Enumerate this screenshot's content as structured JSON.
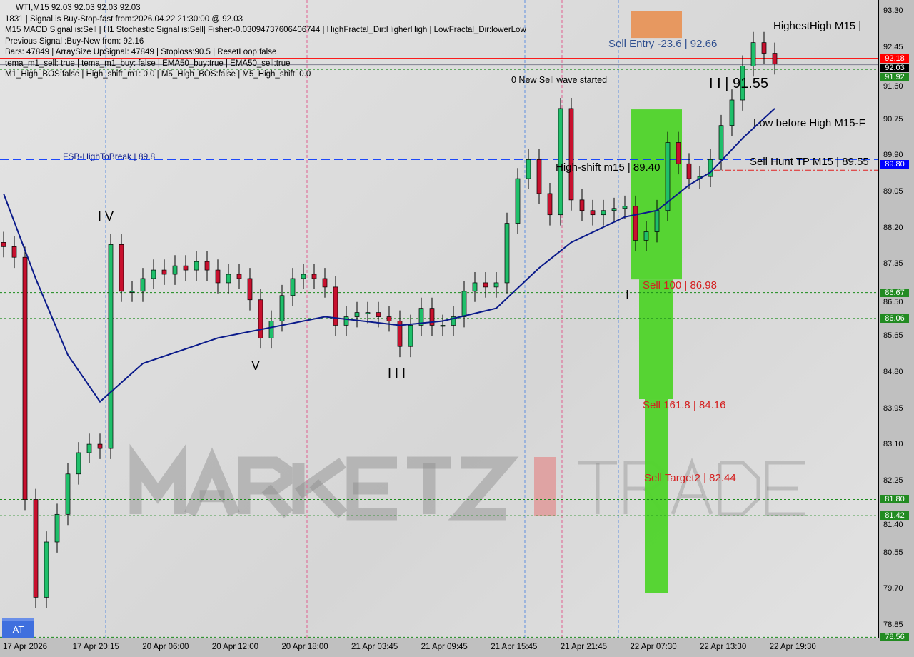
{
  "header": {
    "lines": [
      "WTI,M15  92.03 92.03 92.03 92.03",
      "1831 | Signal is Buy-Stop-fast from:2026.04.22 21:30:00 @ 92.03",
      "M15 MACD Signal is:Sell | H1 Stochastic Signal is:Sell| Fisher:-0.03094737606406744 | HighFractal_Dir:HigherHigh | LowFractal_Dir:lowerLow",
      "Previous Signal :Buy-New from: 92.16",
      "Bars: 47849 | ArraySize UpSignal: 47849 | Stoploss:90.5 | ResetLoop:false",
      "tema_m1_sell: true | tema_m1_buy: false | EMA50_buy:true | EMA50_sell:true",
      "M1_High_BOS:false | High_shift_m1: 0.0 | M5_High_BOS:false | M5_High_shift: 0.0"
    ]
  },
  "annotations": {
    "sell_entry": "Sell Entry -23.6 | 92.66",
    "new_wave": "0 New Sell wave started",
    "fsb": "FSB-HighToBreak | 89.8",
    "high_shift": "High-shift m15 | 89.40",
    "sell_100": "Sell 100 | 86.98",
    "sell_161": "Sell 161.8 | 84.16",
    "sell_target2": "Sell Target2 | 82.44",
    "highest_high": "HighestHigh   M15 |",
    "wave_ii": "I I | 91.55",
    "low_before_high": "Low before High   M15-F",
    "sell_hunt": "Sell Hunt TP M15 | 89.55",
    "wave_iv": "I V",
    "wave_v": "V",
    "wave_iii": "I I I",
    "wave_i": "I"
  },
  "watermark": "MARKETZ TRADE",
  "at_button": "AT",
  "colors": {
    "bull": "#1fbf6a",
    "bear": "#c8102e",
    "ema": "#0a1a8a",
    "sell_entry_zone": "#e8955a",
    "sell_zone": "#4fd42a",
    "level": "#1a8a1a",
    "fsb": "#0033ff"
  },
  "chart_data": {
    "type": "candlestick",
    "symbol": "WTI",
    "timeframe": "M15",
    "ylim": [
      78.56,
      93.3
    ],
    "y_ticks": [
      "93.30",
      "92.45",
      "91.60",
      "90.75",
      "89.90",
      "89.05",
      "88.20",
      "87.35",
      "86.50",
      "85.65",
      "84.80",
      "83.95",
      "83.10",
      "82.25",
      "81.40",
      "80.55",
      "79.70",
      "78.85"
    ],
    "x_ticks": [
      "17 Apr 2026",
      "17 Apr 20:15",
      "20 Apr 06:00",
      "20 Apr 12:00",
      "20 Apr 18:00",
      "21 Apr 03:45",
      "21 Apr 09:45",
      "21 Apr 15:45",
      "21 Apr 21:45",
      "22 Apr 07:30",
      "22 Apr 13:30",
      "22 Apr 19:30"
    ],
    "closes": [
      87.75,
      87.5,
      81.8,
      79.5,
      80.8,
      81.45,
      82.4,
      82.9,
      83.1,
      83.0,
      87.8,
      86.7,
      86.7,
      87.0,
      87.2,
      87.1,
      87.3,
      87.2,
      87.4,
      87.2,
      86.9,
      87.1,
      87.0,
      86.5,
      85.6,
      86.0,
      86.6,
      87.0,
      87.1,
      87.0,
      86.8,
      85.9,
      86.1,
      86.2,
      86.2,
      86.1,
      86.0,
      85.4,
      85.9,
      86.3,
      85.9,
      85.9,
      86.1,
      86.7,
      86.9,
      86.8,
      86.9,
      88.3,
      89.35,
      89.8,
      89.0,
      88.5,
      91.0,
      88.85,
      88.6,
      88.5,
      88.6,
      88.65,
      88.7,
      87.9,
      88.1,
      88.6,
      90.2,
      89.7,
      89.35,
      89.4,
      89.8,
      90.6,
      91.2,
      92.0,
      92.55,
      92.3,
      92.05
    ],
    "ema50": [
      [
        0,
        89.0
      ],
      [
        3,
        87.0
      ],
      [
        6,
        85.2
      ],
      [
        9,
        84.1
      ],
      [
        13,
        85.0
      ],
      [
        20,
        85.6
      ],
      [
        24,
        85.8
      ],
      [
        30,
        86.1
      ],
      [
        37,
        85.9
      ],
      [
        41,
        86.0
      ],
      [
        46,
        86.3
      ],
      [
        50,
        87.25
      ],
      [
        53,
        87.85
      ],
      [
        58,
        88.45
      ],
      [
        61,
        88.6
      ],
      [
        64,
        89.2
      ],
      [
        66,
        89.5
      ],
      [
        69,
        90.3
      ],
      [
        72,
        91.0
      ]
    ],
    "levels": [
      {
        "price": 92.18,
        "label": "92.18",
        "style": "red-solid",
        "box": "#ff0000"
      },
      {
        "price": 92.03,
        "label": "92.03",
        "style": "gray-solid",
        "box": "#000000"
      },
      {
        "price": 91.92,
        "label": "91.92",
        "style": "green-dashed",
        "box": "#228b22"
      },
      {
        "price": 89.8,
        "label": "89.80",
        "style": "blue-dashed",
        "box": "#0000ff"
      },
      {
        "price": 86.67,
        "label": "86.67",
        "style": "green-dashed",
        "box": "#228b22"
      },
      {
        "price": 86.06,
        "label": "86.06",
        "style": "green-dashed",
        "box": "#228b22"
      },
      {
        "price": 81.8,
        "label": "81.80",
        "style": "green-dashed",
        "box": "#228b22"
      },
      {
        "price": 81.42,
        "label": "81.42",
        "style": "green-dashed",
        "box": "#228b22"
      },
      {
        "price": 78.56,
        "label": "78.56",
        "style": "green-dashed",
        "box": "#228b22"
      }
    ],
    "zones": [
      {
        "name": "sell-entry-zone",
        "from": 92.66,
        "to": 93.3
      },
      {
        "name": "sell-100-zone",
        "from": 86.98,
        "to": 90.98
      },
      {
        "name": "sell-161-zone",
        "from": 84.16,
        "to": 86.98
      },
      {
        "name": "sell-target2-zone",
        "from": 79.6,
        "to": 84.16
      }
    ]
  }
}
